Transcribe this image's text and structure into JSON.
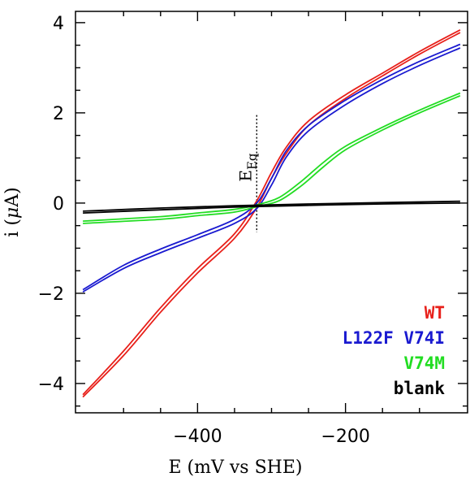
{
  "chart_data": {
    "type": "line",
    "xlabel": "E (mV vs SHE)",
    "ylabel_prefix": "i (",
    "ylabel_mu": "μ",
    "ylabel_suffix": "A)",
    "xlim": [
      -565,
      -35
    ],
    "ylim": [
      -4.65,
      4.25
    ],
    "xticks": [
      -400,
      -200
    ],
    "xtick_labels": [
      "−400",
      "−200"
    ],
    "yticks": [
      4,
      2,
      0,
      -2,
      -4
    ],
    "ytick_labels": [
      "4",
      "2",
      "0",
      "−2",
      "−4"
    ],
    "grid": false,
    "legend_position": "bottom-right",
    "annotation": {
      "text": "E",
      "subscript": "Eq",
      "x": -320,
      "y_range": [
        -0.65,
        1.95
      ]
    },
    "series": [
      {
        "name": "WT",
        "color": "#e8201a",
        "forward": [
          [
            -555,
            -4.3
          ],
          [
            -500,
            -3.38
          ],
          [
            -450,
            -2.42
          ],
          [
            -400,
            -1.55
          ],
          [
            -350,
            -0.78
          ],
          [
            -320,
            -0.1
          ],
          [
            -300,
            0.55
          ],
          [
            -280,
            1.1
          ],
          [
            -250,
            1.72
          ],
          [
            -200,
            2.32
          ],
          [
            -150,
            2.82
          ],
          [
            -100,
            3.3
          ],
          [
            -45,
            3.78
          ]
        ],
        "reverse": [
          [
            -45,
            3.84
          ],
          [
            -100,
            3.36
          ],
          [
            -150,
            2.88
          ],
          [
            -200,
            2.4
          ],
          [
            -250,
            1.82
          ],
          [
            -280,
            1.24
          ],
          [
            -300,
            0.68
          ],
          [
            -320,
            0.05
          ],
          [
            -350,
            -0.68
          ],
          [
            -400,
            -1.45
          ],
          [
            -450,
            -2.32
          ],
          [
            -500,
            -3.28
          ],
          [
            -555,
            -4.25
          ]
        ]
      },
      {
        "name": "L122F V74I",
        "color": "#1a1ad0",
        "forward": [
          [
            -555,
            -1.97
          ],
          [
            -500,
            -1.45
          ],
          [
            -450,
            -1.1
          ],
          [
            -400,
            -0.78
          ],
          [
            -350,
            -0.45
          ],
          [
            -320,
            -0.12
          ],
          [
            -300,
            0.4
          ],
          [
            -280,
            1.02
          ],
          [
            -250,
            1.6
          ],
          [
            -200,
            2.18
          ],
          [
            -150,
            2.65
          ],
          [
            -100,
            3.05
          ],
          [
            -45,
            3.44
          ]
        ],
        "reverse": [
          [
            -45,
            3.52
          ],
          [
            -100,
            3.14
          ],
          [
            -150,
            2.74
          ],
          [
            -200,
            2.28
          ],
          [
            -250,
            1.72
          ],
          [
            -280,
            1.16
          ],
          [
            -300,
            0.55
          ],
          [
            -320,
            0.0
          ],
          [
            -350,
            -0.36
          ],
          [
            -400,
            -0.7
          ],
          [
            -450,
            -1.02
          ],
          [
            -500,
            -1.38
          ],
          [
            -555,
            -1.92
          ]
        ]
      },
      {
        "name": "V74M",
        "color": "#22dd22",
        "forward": [
          [
            -555,
            -0.45
          ],
          [
            -450,
            -0.36
          ],
          [
            -400,
            -0.28
          ],
          [
            -350,
            -0.2
          ],
          [
            -320,
            -0.08
          ],
          [
            -290,
            0.05
          ],
          [
            -260,
            0.38
          ],
          [
            -230,
            0.8
          ],
          [
            -200,
            1.18
          ],
          [
            -150,
            1.62
          ],
          [
            -100,
            2.0
          ],
          [
            -45,
            2.38
          ]
        ],
        "reverse": [
          [
            -45,
            2.44
          ],
          [
            -100,
            2.06
          ],
          [
            -150,
            1.68
          ],
          [
            -200,
            1.26
          ],
          [
            -230,
            0.9
          ],
          [
            -260,
            0.48
          ],
          [
            -290,
            0.12
          ],
          [
            -320,
            -0.04
          ],
          [
            -350,
            -0.14
          ],
          [
            -400,
            -0.22
          ],
          [
            -450,
            -0.3
          ],
          [
            -555,
            -0.4
          ]
        ]
      },
      {
        "name": "blank",
        "color": "#000000",
        "forward": [
          [
            -555,
            -0.22
          ],
          [
            -450,
            -0.15
          ],
          [
            -350,
            -0.09
          ],
          [
            -250,
            -0.05
          ],
          [
            -150,
            -0.02
          ],
          [
            -45,
            0.0
          ]
        ],
        "reverse": [
          [
            -45,
            0.04
          ],
          [
            -150,
            0.01
          ],
          [
            -250,
            -0.02
          ],
          [
            -350,
            -0.06
          ],
          [
            -450,
            -0.11
          ],
          [
            -555,
            -0.18
          ]
        ]
      }
    ]
  }
}
